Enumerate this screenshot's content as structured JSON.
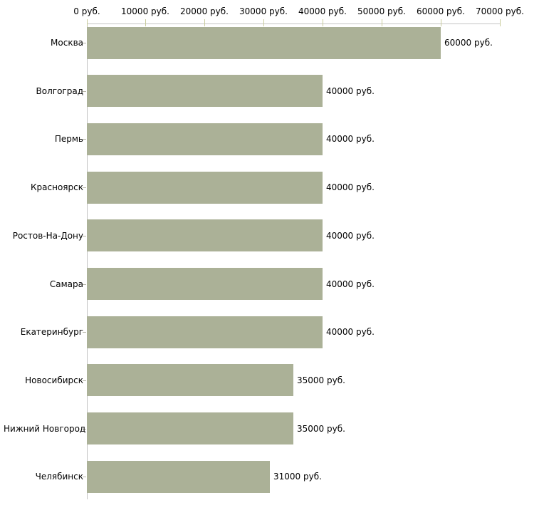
{
  "chart_data": {
    "type": "bar",
    "orientation": "horizontal",
    "title": "",
    "xlabel": "",
    "ylabel": "",
    "categories": [
      "Москва",
      "Волгоград",
      "Пермь",
      "Красноярск",
      "Ростов-На-Дону",
      "Самара",
      "Екатеринбург",
      "Новосибирск",
      "Нижний Новгород",
      "Челябинск"
    ],
    "values": [
      60000,
      40000,
      40000,
      40000,
      40000,
      40000,
      40000,
      35000,
      35000,
      31000
    ],
    "value_labels": [
      "60000 руб.",
      "40000 руб.",
      "40000 руб.",
      "40000 руб.",
      "40000 руб.",
      "40000 руб.",
      "40000 руб.",
      "35000 руб.",
      "35000 руб.",
      "31000 руб."
    ],
    "x_tick_values": [
      0,
      10000,
      20000,
      30000,
      40000,
      50000,
      60000,
      70000
    ],
    "x_tick_labels": [
      "0 руб.",
      "10000 руб.",
      "20000 руб.",
      "30000 руб.",
      "40000 руб.",
      "50000 руб.",
      "60000 руб.",
      "70000 руб."
    ],
    "xlim": [
      0,
      70000
    ],
    "grid": false,
    "legend": null,
    "x_axis_position": "top",
    "colors": {
      "bar": "#abb197",
      "axis_line": "#c3c3c3",
      "x_tick_mark": "#c9cc9c",
      "y_tick_mark": "#b5b5a8",
      "text": "#000000",
      "background": "#ffffff"
    }
  }
}
